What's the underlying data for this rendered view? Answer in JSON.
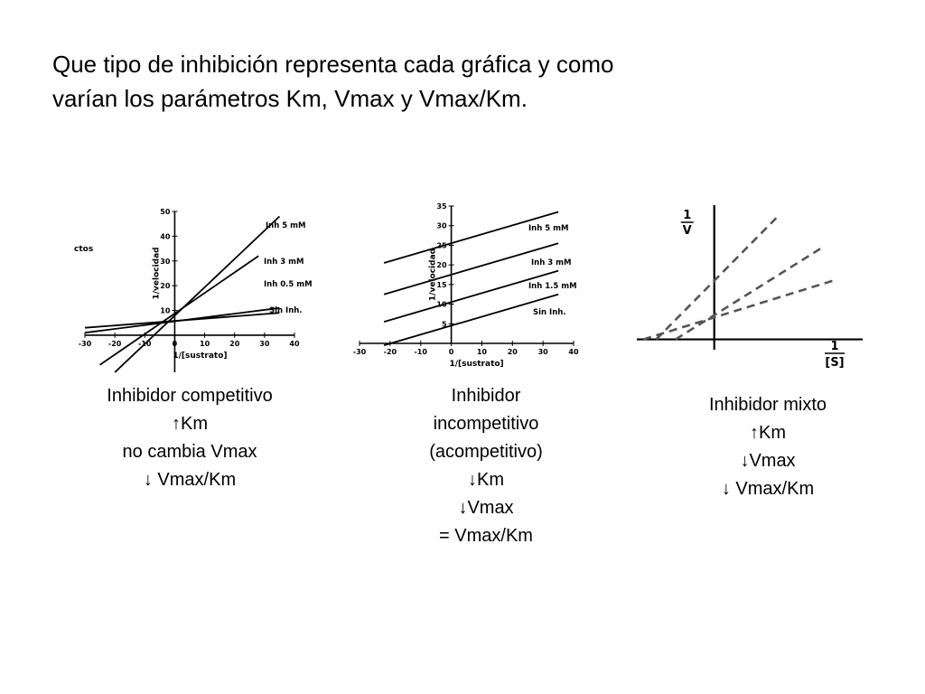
{
  "slide": {
    "title_line1": "Que tipo de inhibición representa cada gráfica y como",
    "title_line2": "varían los parámetros Km, Vmax y Vmax/Km."
  },
  "captions": {
    "competitive": [
      "Inhibidor competitivo",
      "↑Km",
      "no cambia Vmax",
      "↓ Vmax/Km"
    ],
    "uncompetitive": [
      "Inhibidor",
      "incompetitivo",
      "(acompetitivo)",
      "↓Km",
      "↓Vmax",
      "= Vmax/Km"
    ],
    "mixed": [
      "Inhibidor mixto",
      "↑Km",
      "↓Vmax",
      "↓ Vmax/Km"
    ]
  },
  "chart_data": [
    {
      "type": "line",
      "side_label": "ctos",
      "xlabel": "1/[sustrato]",
      "ylabel": "1/velocidad",
      "xlim": [
        -30,
        40
      ],
      "ylim": [
        -15,
        50
      ],
      "xticks": [
        -30,
        -20,
        -10,
        0,
        10,
        20,
        30,
        40
      ],
      "yticks": [
        10,
        20,
        30,
        40,
        50
      ],
      "series": [
        {
          "name": "Inh 5 mM",
          "x": [
            -20,
            35
          ],
          "y": [
            -15,
            48
          ]
        },
        {
          "name": "Inh 3 mM",
          "x": [
            -25,
            28
          ],
          "y": [
            -12,
            32
          ]
        },
        {
          "name": "Inh 0.5 mM",
          "x": [
            -30,
            35
          ],
          "y": [
            1,
            11
          ]
        },
        {
          "name": "Sin Inh.",
          "x": [
            -30,
            35
          ],
          "y": [
            3,
            9
          ]
        }
      ]
    },
    {
      "type": "line",
      "xlabel": "1/[sustrato]",
      "ylabel": "1/velocidad",
      "xlim": [
        -30,
        40
      ],
      "ylim": [
        0,
        35
      ],
      "xticks": [
        -30,
        -20,
        -10,
        0,
        10,
        20,
        30,
        40
      ],
      "yticks": [
        5,
        10,
        15,
        20,
        25,
        30,
        35
      ],
      "series": [
        {
          "name": "Inh 5 mM",
          "x": [
            -22,
            35
          ],
          "y": [
            20.5,
            33.5
          ]
        },
        {
          "name": "Inh 3 mM",
          "x": [
            -22,
            35
          ],
          "y": [
            12.5,
            25.5
          ]
        },
        {
          "name": "Inh 1.5 mM",
          "x": [
            -22,
            35
          ],
          "y": [
            5.5,
            18.5
          ]
        },
        {
          "name": "Sin Inh.",
          "x": [
            -22,
            35
          ],
          "y": [
            -0.5,
            12.5
          ]
        }
      ]
    },
    {
      "type": "line",
      "xlabel_num": "1",
      "xlabel_den": "[S]",
      "ylabel_num": "1",
      "ylabel_den": "V",
      "xlim": [
        -1.2,
        2.3
      ],
      "ylim": [
        -0.1,
        1.3
      ],
      "series": [
        {
          "x": [
            -0.9,
            1.0
          ],
          "y": [
            0,
            1.2
          ]
        },
        {
          "x": [
            -0.6,
            1.7
          ],
          "y": [
            0,
            0.9
          ]
        },
        {
          "x": [
            -1.1,
            1.9
          ],
          "y": [
            0,
            0.58
          ]
        }
      ]
    }
  ]
}
